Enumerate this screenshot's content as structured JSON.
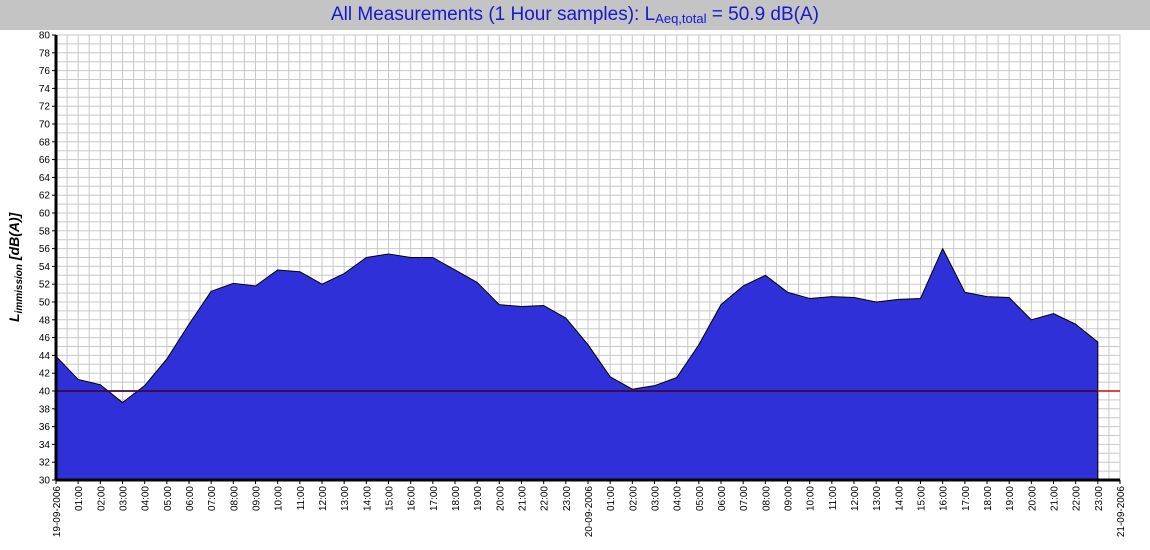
{
  "title": {
    "prefix": "All Measurements (1 Hour samples): L",
    "sub": "Aeq,total",
    "suffix": " = 50.9 dB(A)"
  },
  "colors": {
    "title_bg": "#c4c4c4",
    "title_text": "#1818d0",
    "area_fill": "#3030d8",
    "reference_line": "#e00000",
    "grid": "#c8c8c8"
  },
  "chart_data": {
    "type": "area",
    "title": "All Measurements (1 Hour samples): LAeq,total = 50.9 dB(A)",
    "ylabel": {
      "main": "L",
      "sub": "immission",
      "unit": " [dB(A)]"
    },
    "ylim": [
      30,
      80
    ],
    "ytick_step": 2,
    "grid": true,
    "reference_value": 40,
    "x_labels": [
      "19-09-2006",
      "01:00",
      "02:00",
      "03:00",
      "04:00",
      "05:00",
      "06:00",
      "07:00",
      "08:00",
      "09:00",
      "10:00",
      "11:00",
      "12:00",
      "13:00",
      "14:00",
      "15:00",
      "16:00",
      "17:00",
      "18:00",
      "19:00",
      "20:00",
      "21:00",
      "22:00",
      "23:00",
      "20-09-2006",
      "01:00",
      "02:00",
      "03:00",
      "04:00",
      "05:00",
      "06:00",
      "07:00",
      "08:00",
      "09:00",
      "10:00",
      "11:00",
      "12:00",
      "13:00",
      "14:00",
      "15:00",
      "16:00",
      "17:00",
      "18:00",
      "19:00",
      "20:00",
      "21:00",
      "22:00",
      "23:00",
      "21-09-2006"
    ],
    "series": [
      {
        "values": [
          43.9,
          41.3,
          40.7,
          38.7,
          40.6,
          43.6,
          47.5,
          51.2,
          52.1,
          51.8,
          53.6,
          53.4,
          52.0,
          53.2,
          55.0,
          55.4,
          55.0,
          55.0,
          53.6,
          52.2,
          49.7,
          49.5,
          49.6,
          48.2,
          45.2,
          41.6,
          40.2,
          40.6,
          41.5,
          45.2,
          49.7,
          51.8,
          53.0,
          51.1,
          50.4,
          50.6,
          50.5,
          50.0,
          50.3,
          50.4,
          56.0,
          51.1,
          50.6,
          50.5,
          48.0,
          48.7,
          47.5,
          45.5
        ]
      }
    ]
  }
}
